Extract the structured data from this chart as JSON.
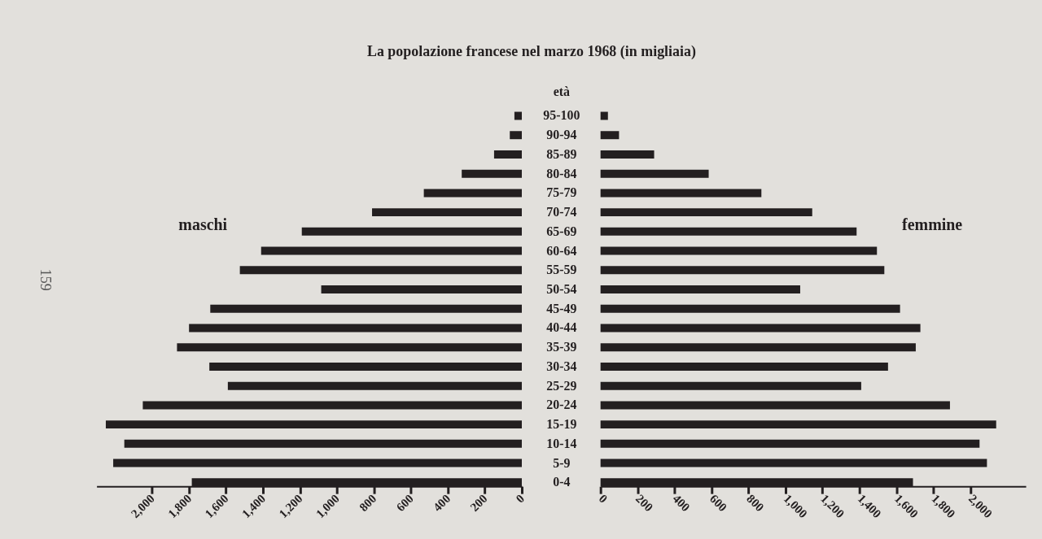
{
  "chart_data": [
    {
      "type": "bar",
      "orientation": "horizontal",
      "title": "La popolazione francese nel marzo 1968 (in migliaia)",
      "ylabel": "età",
      "annotations": [
        "159"
      ],
      "categories": [
        "95-100",
        "90-94",
        "85-89",
        "80-84",
        "75-79",
        "70-74",
        "65-69",
        "60-64",
        "55-59",
        "50-54",
        "45-49",
        "40-44",
        "35-39",
        "30-34",
        "25-29",
        "20-24",
        "15-19",
        "10-14",
        "5-9",
        "0-4"
      ],
      "series": [
        {
          "name": "maschi",
          "color": "#231f20",
          "values": [
            40,
            65,
            150,
            325,
            530,
            810,
            1190,
            1410,
            1525,
            1085,
            1685,
            1800,
            1865,
            1690,
            1590,
            2050,
            2250,
            2150,
            2210,
            1785
          ]
        }
      ],
      "xlim": [
        2300,
        0
      ],
      "xticks": [
        {
          "value": 2000,
          "label": "2,000"
        },
        {
          "value": 1800,
          "label": "1,800"
        },
        {
          "value": 1600,
          "label": "1,600"
        },
        {
          "value": 1400,
          "label": "1,400"
        },
        {
          "value": 1200,
          "label": "1,200"
        },
        {
          "value": 1000,
          "label": "1,000"
        },
        800,
        600,
        400,
        200,
        0
      ]
    },
    {
      "type": "bar",
      "orientation": "horizontal",
      "tick_labels": "x",
      "categories": [
        null,
        null,
        null,
        null,
        null,
        null,
        null,
        null,
        null,
        null,
        null,
        null,
        null,
        null,
        null,
        null,
        null,
        null,
        null,
        null
      ],
      "series": [
        {
          "name": "femmine",
          "color": "#231f20",
          "values": [
            40,
            100,
            290,
            585,
            870,
            1145,
            1385,
            1495,
            1535,
            1080,
            1620,
            1730,
            1705,
            1555,
            1410,
            1890,
            2140,
            2050,
            2090,
            1690
          ]
        }
      ],
      "xlim": [
        0,
        2300
      ],
      "xticks": [
        0,
        200,
        400,
        600,
        800,
        {
          "value": 1000,
          "label": "1,000"
        },
        {
          "value": 1200,
          "label": "1,200"
        },
        {
          "value": 1400,
          "label": "1,400"
        },
        {
          "value": 1600,
          "label": "1,600"
        },
        {
          "value": 1800,
          "label": "1,800"
        },
        {
          "value": 2000,
          "label": "2,000"
        }
      ]
    }
  ]
}
